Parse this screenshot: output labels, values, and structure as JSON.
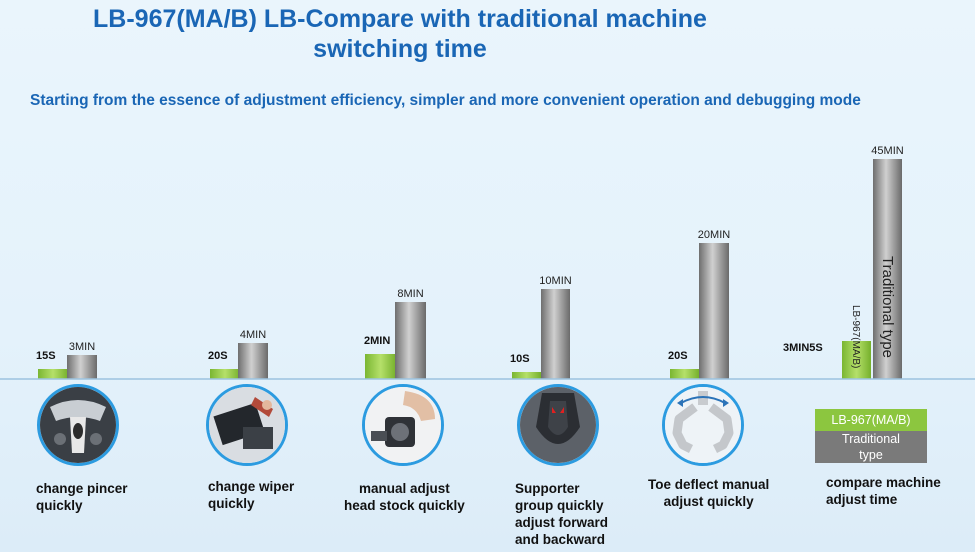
{
  "title": "LB-967(MA/B) LB-Compare with traditional  machine\nswitching time",
  "subtitle": "Starting from the essence of adjustment efficiency, simpler and more convenient operation and debugging mode",
  "colors": {
    "lb": "#8cc63f",
    "traditional": "#8a8a8a",
    "title": "#1a66b5",
    "circle_border": "#2c9be0"
  },
  "chart_data": {
    "type": "bar",
    "units": "minutes",
    "categories": [
      "change pincer\n quickly",
      "change wiper\n quickly",
      "manual adjust\nhead stock quickly",
      "Supporter\ngroup quickly\nadjust forward\n and backward",
      "Toe deflect manual\nadjust quickly",
      "compare machine\nadjust time"
    ],
    "series": [
      {
        "name": "LB-967(MA/B)",
        "values": [
          0.25,
          0.333,
          2,
          0.167,
          0.333,
          3.083
        ],
        "labels": [
          "15S",
          "20S",
          "2MIN",
          "10S",
          "20S",
          "3MIN5S"
        ]
      },
      {
        "name": "Traditional type",
        "values": [
          3,
          4,
          8,
          10,
          20,
          45
        ],
        "labels": [
          "3MIN",
          "4MIN",
          "8MIN",
          "10MIN",
          "20MIN",
          "45MIN"
        ]
      }
    ],
    "bar_texts": [
      "LB-967(MA/B)",
      "Traditional type"
    ],
    "legend": [
      "LB-967(MA/B)",
      "Traditional\ntype"
    ]
  }
}
